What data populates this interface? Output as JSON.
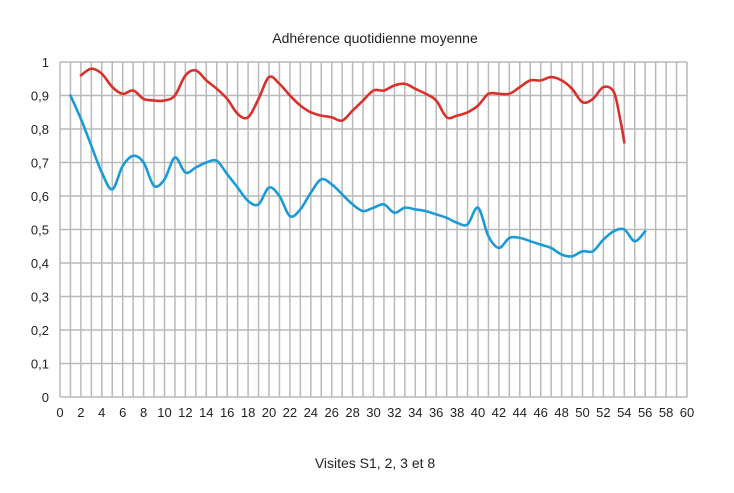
{
  "chart_data": {
    "type": "line",
    "title": "Adhérence quotidienne moyenne",
    "xlabel": "Visites S1, 2, 3 et 8",
    "ylabel": "",
    "xlim": [
      0,
      60
    ],
    "ylim": [
      0,
      1
    ],
    "grid": true,
    "legend": "none",
    "x_ticks": [
      "0",
      "2",
      "4",
      "6",
      "8",
      "10",
      "12",
      "14",
      "16",
      "18",
      "20",
      "22",
      "24",
      "26",
      "28",
      "30",
      "32",
      "34",
      "36",
      "38",
      "40",
      "42",
      "44",
      "46",
      "48",
      "50",
      "52",
      "54",
      "56",
      "58",
      "60"
    ],
    "y_ticks": [
      "0",
      "0,1",
      "0,2",
      "0,3",
      "0,4",
      "0,5",
      "0,6",
      "0,7",
      "0,8",
      "0,9",
      "1"
    ],
    "series": [
      {
        "color": "#d9302c",
        "points": [
          [
            2,
            0.96
          ],
          [
            3,
            0.98
          ],
          [
            4,
            0.965
          ],
          [
            5,
            0.925
          ],
          [
            6,
            0.905
          ],
          [
            7,
            0.915
          ],
          [
            8,
            0.89
          ],
          [
            9,
            0.885
          ],
          [
            10,
            0.885
          ],
          [
            11,
            0.9
          ],
          [
            12,
            0.96
          ],
          [
            13,
            0.975
          ],
          [
            14,
            0.945
          ],
          [
            15,
            0.92
          ],
          [
            16,
            0.89
          ],
          [
            17,
            0.845
          ],
          [
            18,
            0.835
          ],
          [
            19,
            0.89
          ],
          [
            20,
            0.955
          ],
          [
            21,
            0.935
          ],
          [
            22,
            0.9
          ],
          [
            23,
            0.87
          ],
          [
            24,
            0.85
          ],
          [
            25,
            0.84
          ],
          [
            26,
            0.835
          ],
          [
            27,
            0.825
          ],
          [
            28,
            0.855
          ],
          [
            29,
            0.885
          ],
          [
            30,
            0.915
          ],
          [
            31,
            0.915
          ],
          [
            32,
            0.93
          ],
          [
            33,
            0.935
          ],
          [
            34,
            0.92
          ],
          [
            35,
            0.905
          ],
          [
            36,
            0.885
          ],
          [
            37,
            0.835
          ],
          [
            38,
            0.84
          ],
          [
            39,
            0.85
          ],
          [
            40,
            0.87
          ],
          [
            41,
            0.905
          ],
          [
            42,
            0.905
          ],
          [
            43,
            0.905
          ],
          [
            44,
            0.925
          ],
          [
            45,
            0.945
          ],
          [
            46,
            0.945
          ],
          [
            47,
            0.955
          ],
          [
            48,
            0.945
          ],
          [
            49,
            0.92
          ],
          [
            50,
            0.88
          ],
          [
            51,
            0.89
          ],
          [
            52,
            0.925
          ],
          [
            53,
            0.91
          ],
          [
            53.6,
            0.83
          ],
          [
            54,
            0.76
          ]
        ]
      },
      {
        "color": "#1a9bd7",
        "points": [
          [
            1,
            0.9
          ],
          [
            2,
            0.83
          ],
          [
            3,
            0.75
          ],
          [
            4,
            0.67
          ],
          [
            5,
            0.62
          ],
          [
            6,
            0.69
          ],
          [
            7,
            0.72
          ],
          [
            8,
            0.7
          ],
          [
            9,
            0.63
          ],
          [
            10,
            0.65
          ],
          [
            11,
            0.715
          ],
          [
            12,
            0.67
          ],
          [
            13,
            0.685
          ],
          [
            14,
            0.7
          ],
          [
            15,
            0.705
          ],
          [
            16,
            0.665
          ],
          [
            17,
            0.625
          ],
          [
            18,
            0.585
          ],
          [
            19,
            0.575
          ],
          [
            20,
            0.625
          ],
          [
            21,
            0.6
          ],
          [
            22,
            0.54
          ],
          [
            23,
            0.56
          ],
          [
            24,
            0.61
          ],
          [
            25,
            0.65
          ],
          [
            26,
            0.635
          ],
          [
            27,
            0.605
          ],
          [
            28,
            0.575
          ],
          [
            29,
            0.555
          ],
          [
            30,
            0.565
          ],
          [
            31,
            0.575
          ],
          [
            32,
            0.55
          ],
          [
            33,
            0.565
          ],
          [
            34,
            0.56
          ],
          [
            35,
            0.555
          ],
          [
            36,
            0.545
          ],
          [
            37,
            0.535
          ],
          [
            38,
            0.52
          ],
          [
            39,
            0.515
          ],
          [
            40,
            0.565
          ],
          [
            41,
            0.48
          ],
          [
            42,
            0.445
          ],
          [
            43,
            0.475
          ],
          [
            44,
            0.475
          ],
          [
            45,
            0.465
          ],
          [
            46,
            0.455
          ],
          [
            47,
            0.445
          ],
          [
            48,
            0.425
          ],
          [
            49,
            0.42
          ],
          [
            50,
            0.435
          ],
          [
            51,
            0.435
          ],
          [
            52,
            0.47
          ],
          [
            53,
            0.495
          ],
          [
            54,
            0.5
          ],
          [
            55,
            0.465
          ],
          [
            56,
            0.495
          ]
        ]
      }
    ]
  }
}
